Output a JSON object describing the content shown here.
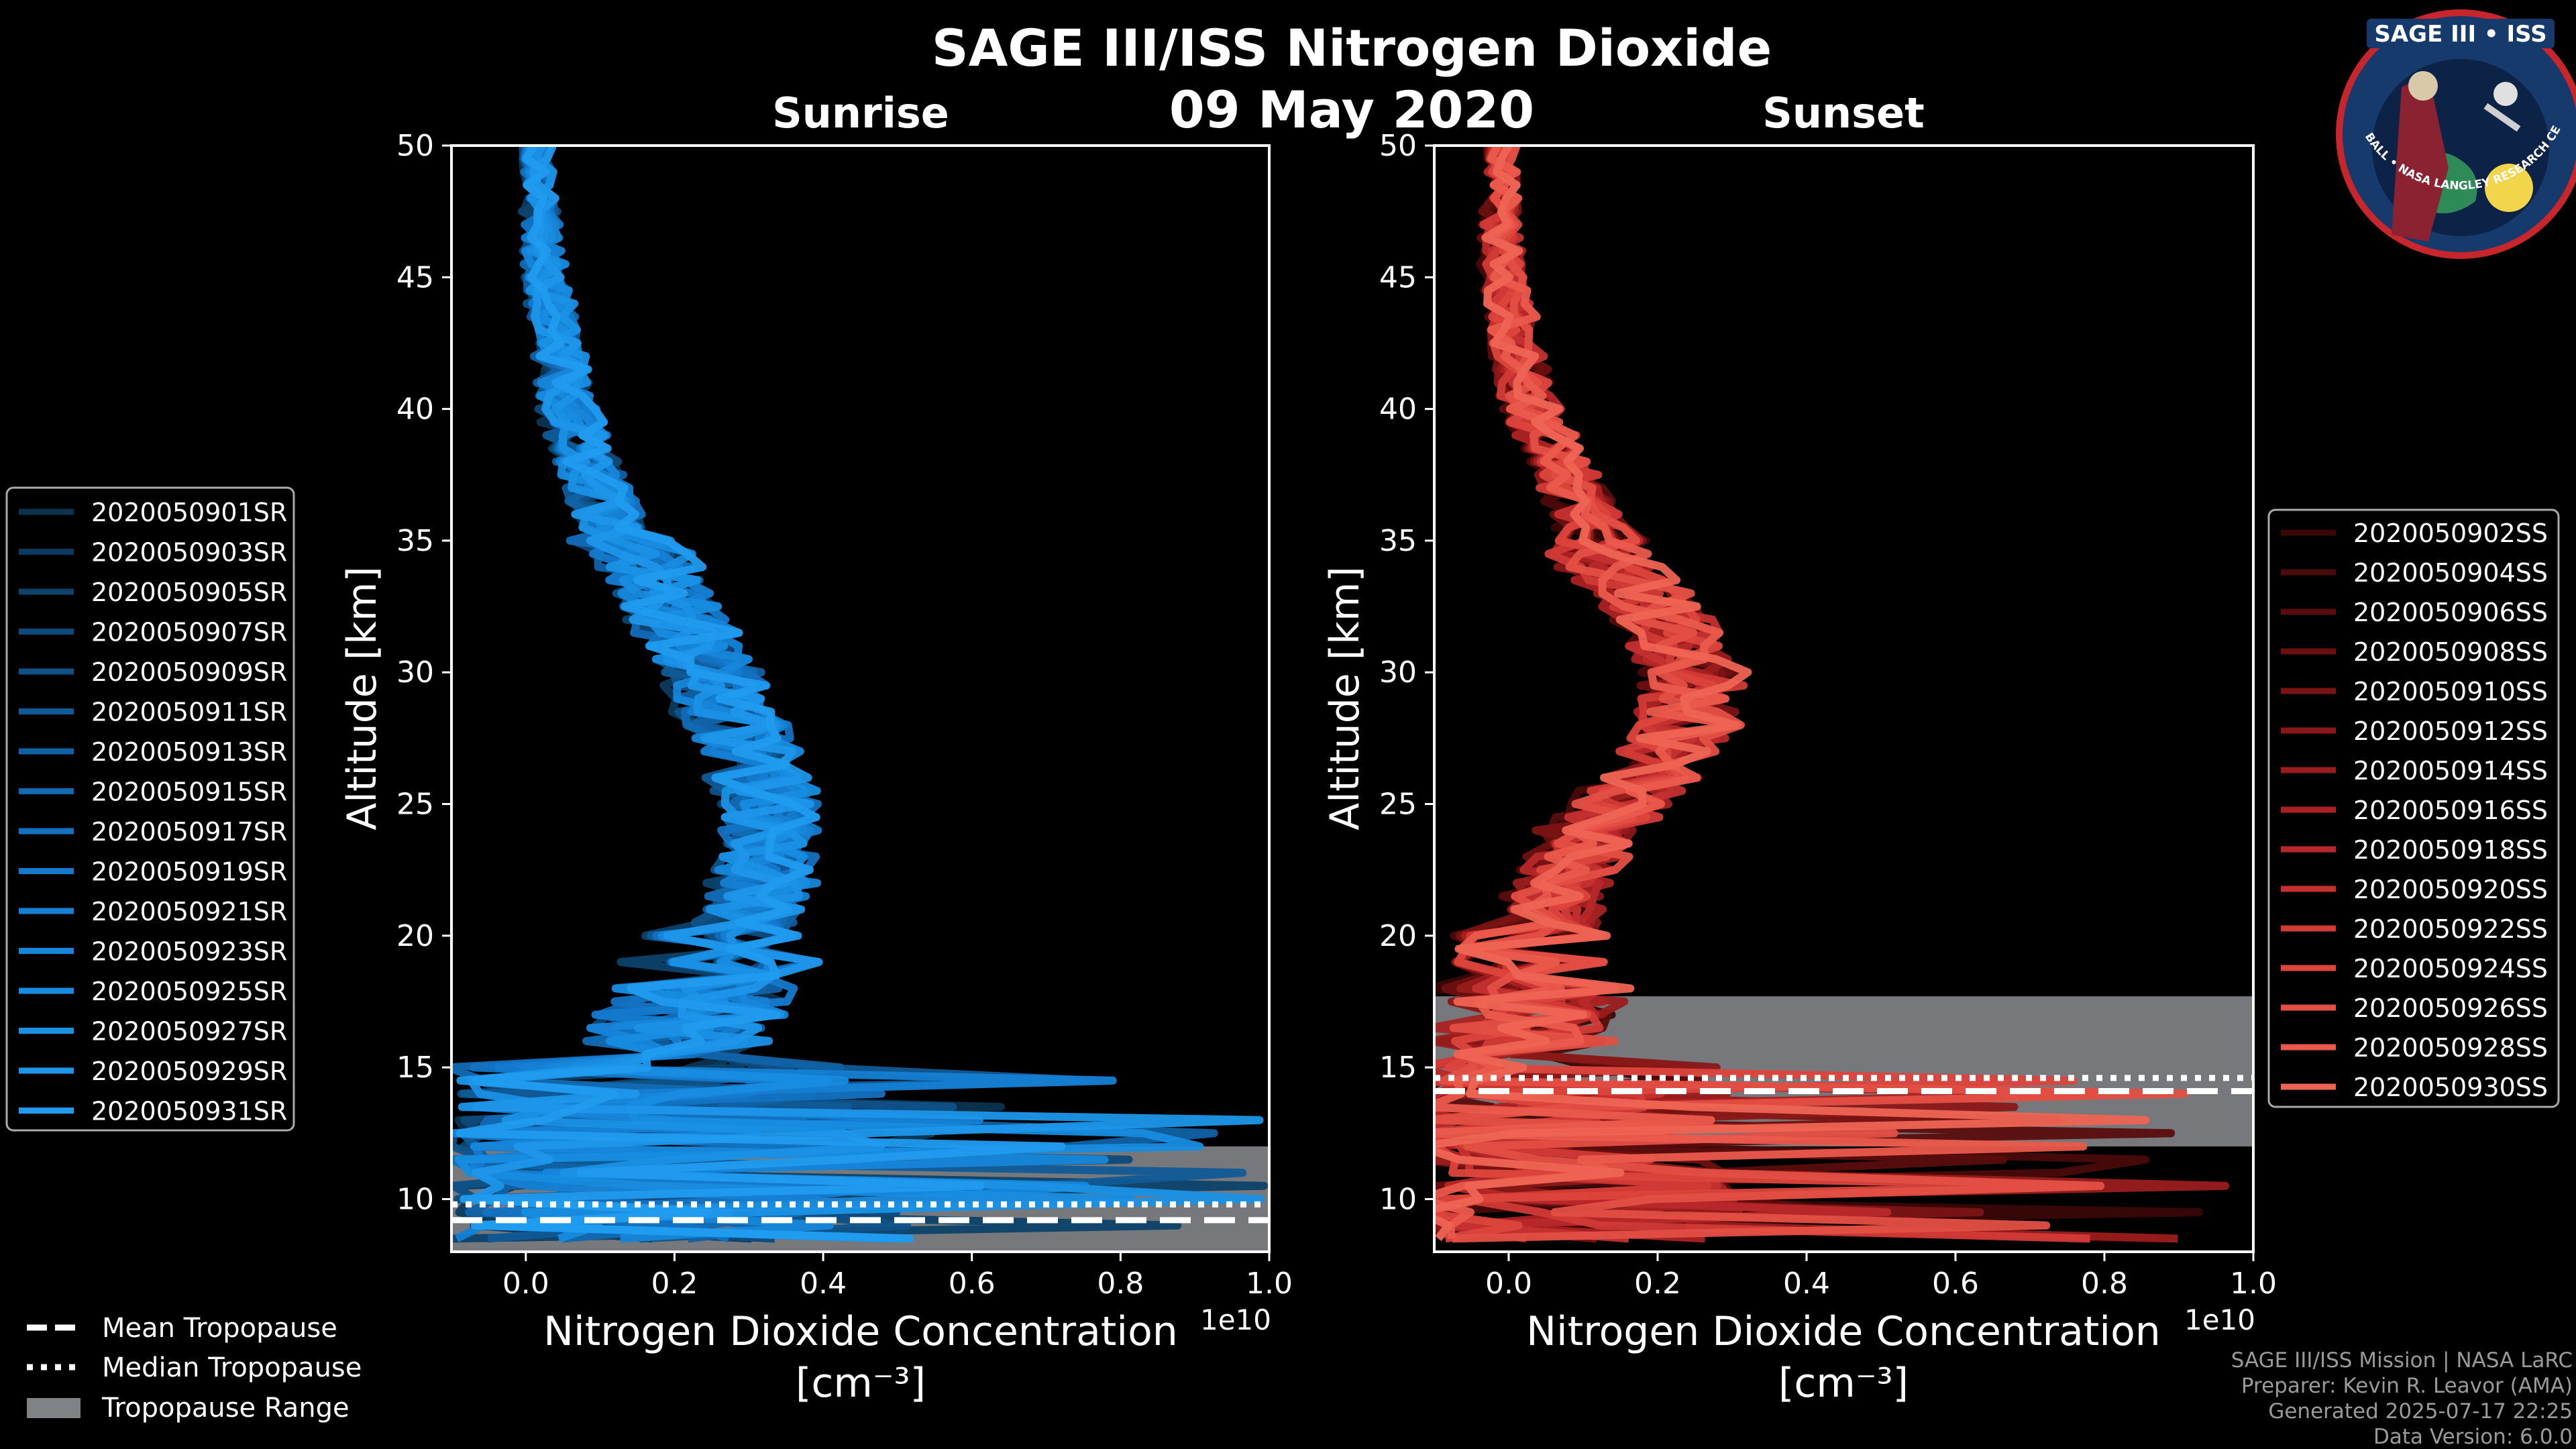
{
  "title": "SAGE III/ISS Nitrogen Dioxide",
  "date": "09 May 2020",
  "logo": {
    "top_text": "SAGE III • ISS",
    "ring_text": "BALL • NASA LANGLEY RESEARCH CENTER • TAS-I • ESA"
  },
  "chart_data": [
    {
      "type": "line",
      "panel": "sunrise",
      "title": "Sunrise",
      "xlabel": "Nitrogen Dioxide Concentration",
      "xlabel_unit": "[cm⁻³]",
      "ylabel": "Altitude [km]",
      "offset_text": "1e10",
      "xlim": [
        -0.1,
        1.0
      ],
      "ylim": [
        8,
        50
      ],
      "xticks": [
        0.0,
        0.2,
        0.4,
        0.6,
        0.8,
        1.0
      ],
      "xtick_labels": [
        "0.0",
        "0.2",
        "0.4",
        "0.6",
        "0.8",
        "1.0"
      ],
      "yticks": [
        10,
        15,
        20,
        25,
        30,
        35,
        40,
        45,
        50
      ],
      "ytick_labels": [
        "10",
        "15",
        "20",
        "25",
        "30",
        "35",
        "40",
        "45",
        "50"
      ],
      "mean_profile": {
        "altitude": [
          50,
          45,
          40,
          35,
          30,
          27,
          25,
          22,
          20,
          18,
          16,
          15,
          14,
          13,
          12,
          11,
          10
        ],
        "value": [
          0.01,
          0.02,
          0.05,
          0.12,
          0.23,
          0.28,
          0.31,
          0.3,
          0.27,
          0.22,
          0.18,
          0.15,
          0.14,
          0.16,
          0.18,
          0.2,
          0.22
        ]
      },
      "colors": [
        "#0b3350",
        "#0c3a5e",
        "#0d426b",
        "#0e4a7a",
        "#0f5288",
        "#105a97",
        "#1162a5",
        "#126ab3",
        "#1372c1",
        "#147acd",
        "#1580d4",
        "#1686da",
        "#178ce0",
        "#1a91e5",
        "#1d96ea",
        "#209bef"
      ],
      "series": [
        {
          "name": "2020050901SR"
        },
        {
          "name": "2020050903SR"
        },
        {
          "name": "2020050905SR"
        },
        {
          "name": "2020050907SR"
        },
        {
          "name": "2020050909SR"
        },
        {
          "name": "2020050911SR"
        },
        {
          "name": "2020050913SR"
        },
        {
          "name": "2020050915SR"
        },
        {
          "name": "2020050917SR"
        },
        {
          "name": "2020050919SR"
        },
        {
          "name": "2020050921SR"
        },
        {
          "name": "2020050923SR"
        },
        {
          "name": "2020050925SR"
        },
        {
          "name": "2020050927SR"
        },
        {
          "name": "2020050929SR"
        },
        {
          "name": "2020050931SR"
        }
      ],
      "tropopause": {
        "mean": 9.2,
        "median": 9.8,
        "range": [
          8,
          12
        ]
      },
      "legend_position": "left"
    },
    {
      "type": "line",
      "panel": "sunset",
      "title": "Sunset",
      "xlabel": "Nitrogen Dioxide Concentration",
      "xlabel_unit": "[cm⁻³]",
      "ylabel": "Altitude [km]",
      "offset_text": "1e10",
      "xlim": [
        -0.1,
        1.0
      ],
      "ylim": [
        8,
        50
      ],
      "xticks": [
        0.0,
        0.2,
        0.4,
        0.6,
        0.8,
        1.0
      ],
      "xtick_labels": [
        "0.0",
        "0.2",
        "0.4",
        "0.6",
        "0.8",
        "1.0"
      ],
      "yticks": [
        10,
        15,
        20,
        25,
        30,
        35,
        40,
        45,
        50
      ],
      "ytick_labels": [
        "10",
        "15",
        "20",
        "25",
        "30",
        "35",
        "40",
        "45",
        "50"
      ],
      "mean_profile": {
        "altitude": [
          50,
          45,
          40,
          35,
          32,
          30,
          28,
          26,
          24,
          22,
          20,
          18,
          16,
          14,
          12,
          10
        ],
        "value": [
          0.0,
          0.0,
          0.04,
          0.13,
          0.24,
          0.28,
          0.27,
          0.22,
          0.14,
          0.1,
          0.08,
          0.06,
          0.05,
          0.05,
          0.06,
          0.1
        ]
      },
      "colors": [
        "#3a0707",
        "#4a0a0a",
        "#5a0d0d",
        "#6a1010",
        "#7a1414",
        "#8a1818",
        "#9a1c1c",
        "#aa2222",
        "#b8282a",
        "#c53030",
        "#d23a36",
        "#dc443c",
        "#e44f44",
        "#ea5a4c",
        "#ee6453"
      ],
      "series": [
        {
          "name": "2020050902SS"
        },
        {
          "name": "2020050904SS"
        },
        {
          "name": "2020050906SS"
        },
        {
          "name": "2020050908SS"
        },
        {
          "name": "2020050910SS"
        },
        {
          "name": "2020050912SS"
        },
        {
          "name": "2020050914SS"
        },
        {
          "name": "2020050916SS"
        },
        {
          "name": "2020050918SS"
        },
        {
          "name": "2020050920SS"
        },
        {
          "name": "2020050922SS"
        },
        {
          "name": "2020050924SS"
        },
        {
          "name": "2020050926SS"
        },
        {
          "name": "2020050928SS"
        },
        {
          "name": "2020050930SS"
        }
      ],
      "tropopause": {
        "mean": 14.1,
        "median": 14.6,
        "range": [
          12,
          17.7
        ]
      },
      "legend_position": "right"
    }
  ],
  "bottom_legend": {
    "mean": "Mean Tropopause",
    "median": "Median Tropopause",
    "range": "Tropopause Range"
  },
  "footer": {
    "line1": "SAGE III/ISS Mission | NASA LaRC",
    "line2": "Preparer: Kevin R. Leavor (AMA)",
    "line3": "Generated 2025-07-17 22:25",
    "line4": "Data Version: 6.0.0"
  },
  "style": {
    "background": "#000000",
    "tropo_fill": "#808285",
    "sunrise_color": "#1a91e5",
    "sunset_color": "#ee6453"
  }
}
